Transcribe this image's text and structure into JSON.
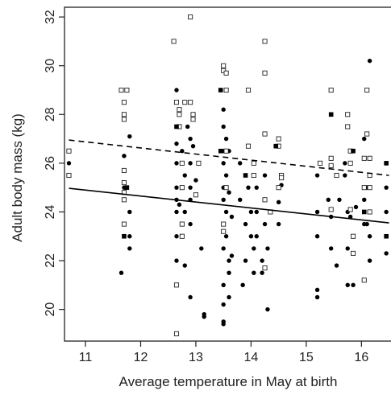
{
  "chart_data": {
    "type": "scatter",
    "title": "",
    "xlabel": "Average temperature in May at birth",
    "ylabel": "Adult body mass (kg)",
    "xlim": [
      10.62,
      16.55
    ],
    "ylim": [
      18.7,
      32.4
    ],
    "xticks": [
      11,
      12,
      13,
      14,
      15,
      16
    ],
    "yticks": [
      20,
      22,
      24,
      26,
      28,
      30,
      32
    ],
    "grid": false,
    "series": [
      {
        "marker": "filled-circle",
        "points": [
          [
            10.7,
            26.0
          ],
          [
            11.65,
            21.5
          ],
          [
            11.7,
            26.3
          ],
          [
            11.7,
            25.0
          ],
          [
            11.75,
            25.0
          ],
          [
            11.8,
            24.0
          ],
          [
            11.8,
            27.1
          ],
          [
            11.8,
            23.0
          ],
          [
            11.8,
            22.5
          ],
          [
            12.65,
            29.0
          ],
          [
            12.65,
            26.8
          ],
          [
            12.65,
            26.0
          ],
          [
            12.65,
            25.0
          ],
          [
            12.65,
            24.5
          ],
          [
            12.65,
            24.0
          ],
          [
            12.65,
            23.0
          ],
          [
            12.65,
            22.0
          ],
          [
            12.7,
            24.3
          ],
          [
            12.75,
            26.5
          ],
          [
            12.75,
            23.5
          ],
          [
            12.8,
            25.5
          ],
          [
            12.8,
            24.0
          ],
          [
            12.8,
            21.8
          ],
          [
            12.85,
            27.5
          ],
          [
            12.9,
            27.0
          ],
          [
            12.9,
            26.0
          ],
          [
            12.9,
            25.0
          ],
          [
            12.9,
            24.5
          ],
          [
            12.9,
            23.5
          ],
          [
            12.9,
            20.5
          ],
          [
            12.95,
            27.8
          ],
          [
            12.95,
            26.7
          ],
          [
            13.0,
            25.3
          ],
          [
            13.1,
            22.5
          ],
          [
            13.15,
            19.8
          ],
          [
            13.15,
            19.7
          ],
          [
            13.5,
            28.2
          ],
          [
            13.5,
            27.5
          ],
          [
            13.5,
            26.5
          ],
          [
            13.5,
            26.0
          ],
          [
            13.5,
            25.0
          ],
          [
            13.5,
            24.5
          ],
          [
            13.5,
            23.5
          ],
          [
            13.5,
            22.5
          ],
          [
            13.5,
            21.0
          ],
          [
            13.5,
            20.2
          ],
          [
            13.5,
            19.5
          ],
          [
            13.5,
            19.4
          ],
          [
            13.55,
            27.0
          ],
          [
            13.55,
            25.5
          ],
          [
            13.55,
            24.0
          ],
          [
            13.55,
            23.0
          ],
          [
            13.6,
            26.5
          ],
          [
            13.6,
            24.8
          ],
          [
            13.6,
            22.0
          ],
          [
            13.6,
            21.5
          ],
          [
            13.6,
            20.5
          ],
          [
            13.65,
            23.8
          ],
          [
            13.65,
            22.2
          ],
          [
            13.8,
            26.0
          ],
          [
            13.8,
            24.5
          ],
          [
            13.85,
            21.0
          ],
          [
            13.9,
            23.5
          ],
          [
            13.9,
            22.0
          ],
          [
            13.95,
            25.0
          ],
          [
            14.0,
            24.0
          ],
          [
            14.0,
            23.0
          ],
          [
            14.05,
            22.5
          ],
          [
            14.05,
            21.5
          ],
          [
            14.1,
            25.0
          ],
          [
            14.1,
            24.0
          ],
          [
            14.1,
            23.0
          ],
          [
            14.2,
            22.0
          ],
          [
            14.2,
            21.5
          ],
          [
            14.25,
            25.5
          ],
          [
            14.25,
            23.5
          ],
          [
            14.3,
            22.5
          ],
          [
            14.3,
            20.0
          ],
          [
            14.45,
            26.7
          ],
          [
            14.5,
            24.4
          ],
          [
            14.5,
            23.5
          ],
          [
            14.55,
            25.1
          ],
          [
            15.2,
            25.5
          ],
          [
            15.2,
            24.0
          ],
          [
            15.2,
            23.0
          ],
          [
            15.2,
            20.8
          ],
          [
            15.2,
            20.5
          ],
          [
            15.4,
            24.5
          ],
          [
            15.45,
            23.8
          ],
          [
            15.45,
            22.5
          ],
          [
            15.55,
            21.8
          ],
          [
            15.6,
            24.5
          ],
          [
            15.7,
            26.0
          ],
          [
            15.7,
            25.5
          ],
          [
            15.75,
            24.0
          ],
          [
            15.75,
            22.5
          ],
          [
            15.75,
            21.0
          ],
          [
            15.8,
            23.8
          ],
          [
            15.85,
            21.0
          ],
          [
            15.9,
            24.2
          ],
          [
            16.05,
            27.0
          ],
          [
            16.05,
            24.5
          ],
          [
            16.05,
            23.5
          ],
          [
            16.1,
            25.0
          ],
          [
            16.1,
            23.5
          ],
          [
            16.15,
            30.2
          ],
          [
            16.15,
            23.0
          ],
          [
            16.15,
            22.0
          ],
          [
            16.45,
            26.0
          ],
          [
            16.45,
            25.0
          ],
          [
            16.45,
            24.0
          ],
          [
            16.45,
            23.0
          ],
          [
            16.45,
            22.3
          ]
        ]
      },
      {
        "marker": "open-square",
        "points": [
          [
            10.7,
            26.5
          ],
          [
            10.7,
            25.5
          ],
          [
            11.65,
            29.0
          ],
          [
            11.7,
            28.5
          ],
          [
            11.7,
            28.0
          ],
          [
            11.7,
            27.8
          ],
          [
            11.75,
            29.0
          ],
          [
            11.7,
            25.7
          ],
          [
            11.7,
            25.2
          ],
          [
            11.7,
            24.8
          ],
          [
            11.7,
            24.5
          ],
          [
            11.7,
            23.5
          ],
          [
            12.6,
            31.0
          ],
          [
            12.65,
            28.5
          ],
          [
            12.7,
            28.2
          ],
          [
            12.7,
            28.0
          ],
          [
            12.7,
            27.5
          ],
          [
            12.75,
            26.0
          ],
          [
            12.75,
            25.0
          ],
          [
            12.75,
            23.5
          ],
          [
            12.75,
            23.0
          ],
          [
            12.65,
            21.0
          ],
          [
            12.65,
            19.0
          ],
          [
            12.8,
            28.5
          ],
          [
            12.9,
            32.0
          ],
          [
            12.9,
            28.5
          ],
          [
            12.95,
            28.0
          ],
          [
            12.95,
            27.8
          ],
          [
            13.05,
            26.0
          ],
          [
            13.0,
            24.7
          ],
          [
            13.5,
            30.0
          ],
          [
            13.5,
            29.8
          ],
          [
            13.55,
            29.7
          ],
          [
            13.55,
            29.0
          ],
          [
            13.5,
            23.5
          ],
          [
            13.5,
            23.2
          ],
          [
            13.55,
            26.5
          ],
          [
            13.55,
            25.0
          ],
          [
            13.95,
            29.0
          ],
          [
            13.95,
            26.7
          ],
          [
            14.05,
            26.0
          ],
          [
            14.05,
            25.5
          ],
          [
            14.25,
            31.0
          ],
          [
            14.25,
            29.7
          ],
          [
            14.25,
            27.2
          ],
          [
            14.25,
            24.5
          ],
          [
            14.25,
            21.7
          ],
          [
            14.35,
            24.0
          ],
          [
            14.5,
            27.0
          ],
          [
            14.5,
            26.7
          ],
          [
            14.55,
            25.5
          ],
          [
            14.55,
            25.4
          ],
          [
            14.5,
            25.0
          ],
          [
            15.25,
            26.0
          ],
          [
            15.45,
            29.0
          ],
          [
            15.45,
            26.2
          ],
          [
            15.45,
            25.9
          ],
          [
            15.45,
            24.1
          ],
          [
            15.55,
            25.5
          ],
          [
            15.75,
            28.0
          ],
          [
            15.75,
            27.5
          ],
          [
            15.8,
            26.5
          ],
          [
            15.8,
            26.0
          ],
          [
            15.8,
            24.1
          ],
          [
            15.85,
            23.0
          ],
          [
            15.85,
            22.3
          ],
          [
            16.05,
            26.2
          ],
          [
            16.05,
            25.0
          ],
          [
            16.05,
            21.2
          ],
          [
            16.1,
            27.2
          ],
          [
            16.1,
            29.0
          ],
          [
            16.15,
            26.2
          ],
          [
            16.15,
            25.5
          ],
          [
            16.15,
            25.0
          ],
          [
            16.15,
            24.0
          ]
        ]
      },
      {
        "marker": "filled-square",
        "points": [
          [
            11.75,
            25.0
          ],
          [
            11.7,
            23.0
          ],
          [
            12.65,
            27.5
          ],
          [
            13.45,
            29.0
          ],
          [
            13.45,
            26.5
          ],
          [
            13.9,
            25.5
          ],
          [
            14.45,
            26.7
          ],
          [
            15.45,
            28.0
          ],
          [
            15.85,
            26.5
          ],
          [
            16.05,
            24.0
          ],
          [
            16.45,
            26.0
          ],
          [
            16.45,
            23.0
          ]
        ]
      }
    ],
    "lines": [
      {
        "style": "dashed",
        "x": [
          10.7,
          16.5
        ],
        "y": [
          26.95,
          25.5
        ]
      },
      {
        "style": "solid",
        "x": [
          10.7,
          16.5
        ],
        "y": [
          24.97,
          23.55
        ]
      }
    ]
  }
}
